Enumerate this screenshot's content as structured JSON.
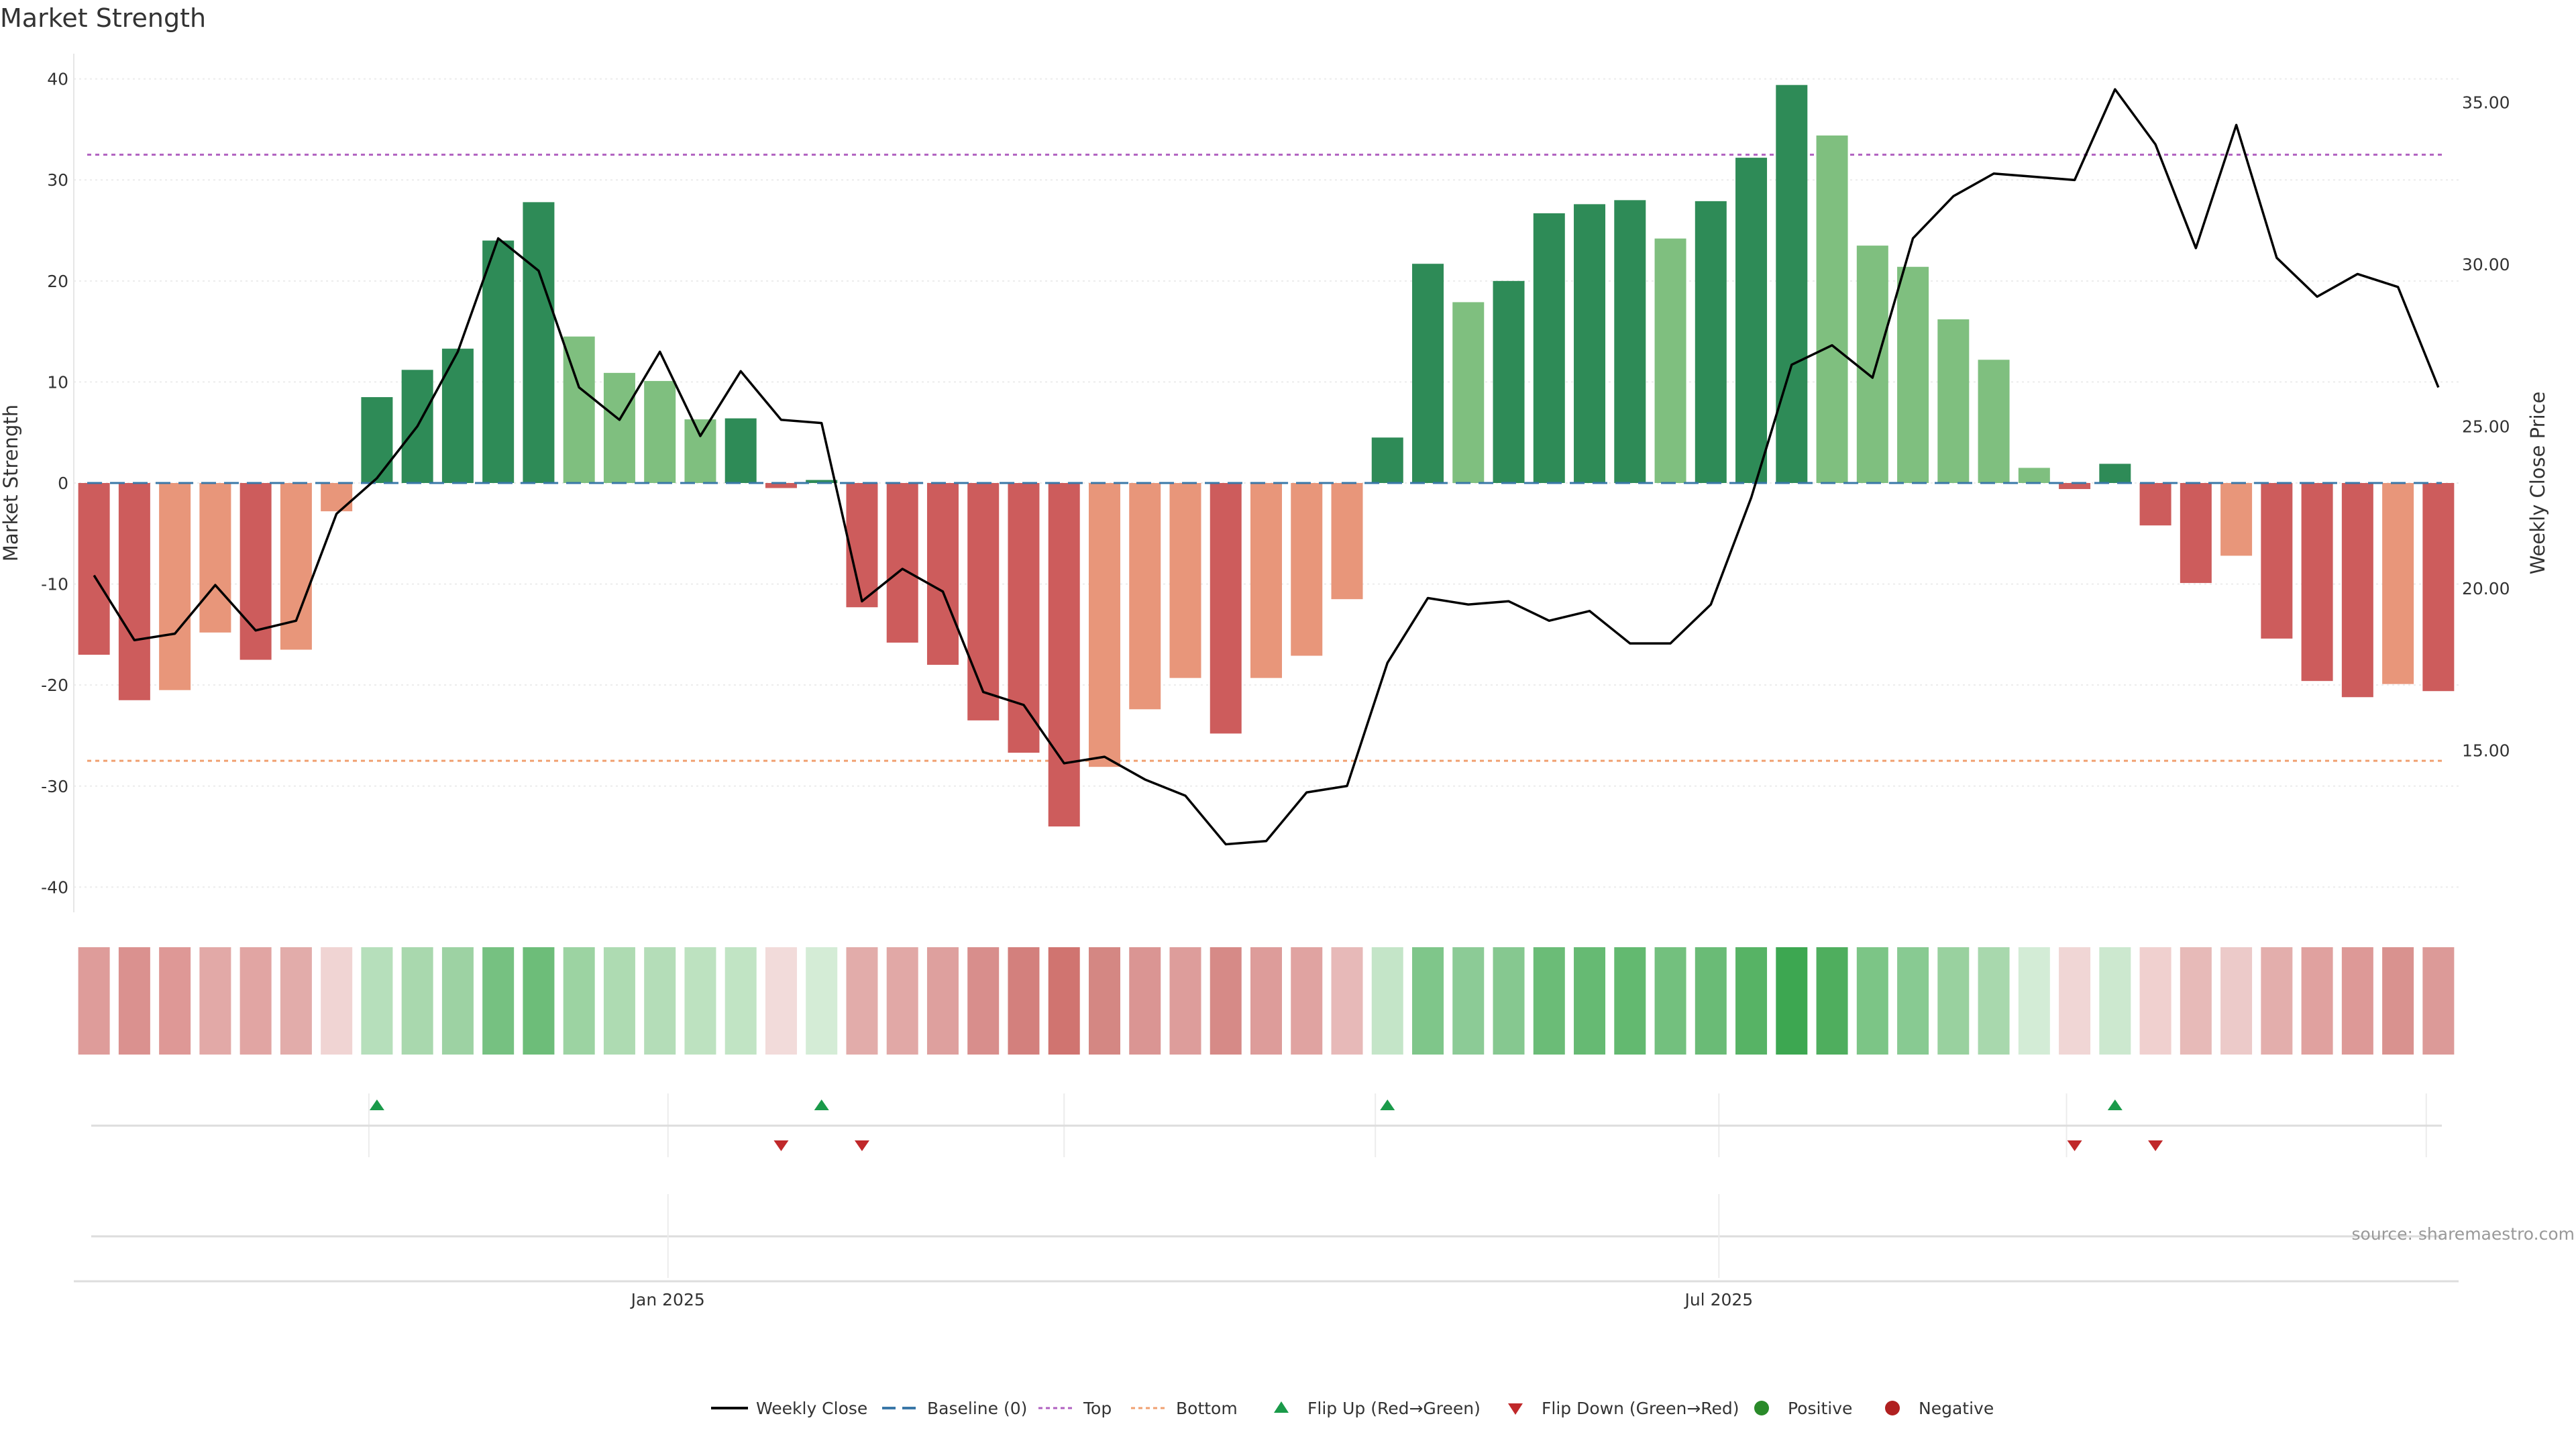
{
  "chart_data": {
    "type": "bar",
    "title": "Market Strength",
    "ylabel": "Market Strength",
    "y2label": "Weekly Close Price",
    "ylim": [
      -42.5,
      42.5
    ],
    "y2lim": [
      10.0,
      36.5
    ],
    "yticks": [
      40,
      30,
      20,
      10,
      0,
      -10,
      -20,
      -30,
      -40
    ],
    "y2ticks": [
      "35.00",
      "30.00",
      "25.00",
      "20.00",
      "15.00"
    ],
    "y2tick_values": [
      35,
      30,
      25,
      20,
      15
    ],
    "top_level": 32.5,
    "bottom_level": -27.5,
    "baseline": 0,
    "x_labels": [
      "Jan 2025",
      "Jul 2025"
    ],
    "x_label_positions": [
      14.7,
      40.7
    ],
    "flip_up_positions": [
      7.5,
      18.5,
      32.5,
      50.5
    ],
    "flip_down_positions": [
      17.5,
      19.5,
      49.5,
      51.5
    ],
    "grid": true,
    "source": "source: sharemaestro.com",
    "series": [
      {
        "name": "Market Strength",
        "values": [
          -17,
          -21.5,
          -20.5,
          -14.8,
          -17.5,
          -16.5,
          -2.8,
          8.5,
          11.2,
          13.3,
          24,
          27.8,
          14.5,
          10.9,
          10.1,
          6.3,
          6.4,
          -0.5,
          0.3,
          -12.3,
          -15.8,
          -18,
          -23.5,
          -26.7,
          -34,
          -28.1,
          -22.4,
          -19.3,
          -24.8,
          -19.3,
          -17.1,
          -11.5,
          4.5,
          21.7,
          17.9,
          20,
          26.7,
          27.6,
          28,
          24.2,
          27.9,
          32.2,
          39.4,
          34.4,
          23.5,
          21.4,
          16.2,
          12.2,
          1.5,
          -0.6,
          1.9,
          -4.2,
          -9.9,
          -7.2,
          -15.4,
          -19.6,
          -21.2,
          -19.9,
          -20.6
        ],
        "colors": [
          "#cd5c5c",
          "#cd5c5c",
          "#e8967a",
          "#e8967a",
          "#cd5c5c",
          "#e8967a",
          "#e8967a",
          "#2e8b57",
          "#2e8b57",
          "#2e8b57",
          "#2e8b57",
          "#2e8b57",
          "#7fbf7f",
          "#7fbf7f",
          "#7fbf7f",
          "#7fbf7f",
          "#2e8b57",
          "#cd5c5c",
          "#2e8b57",
          "#cd5c5c",
          "#cd5c5c",
          "#cd5c5c",
          "#cd5c5c",
          "#cd5c5c",
          "#cd5c5c",
          "#e8967a",
          "#e8967a",
          "#e8967a",
          "#cd5c5c",
          "#e8967a",
          "#e8967a",
          "#e8967a",
          "#2e8b57",
          "#2e8b57",
          "#7fbf7f",
          "#2e8b57",
          "#2e8b57",
          "#2e8b57",
          "#2e8b57",
          "#7fbf7f",
          "#2e8b57",
          "#2e8b57",
          "#2e8b57",
          "#7fbf7f",
          "#7fbf7f",
          "#7fbf7f",
          "#7fbf7f",
          "#7fbf7f",
          "#7fbf7f",
          "#cd5c5c",
          "#2e8b57",
          "#cd5c5c",
          "#cd5c5c",
          "#e8967a",
          "#cd5c5c",
          "#cd5c5c",
          "#cd5c5c",
          "#e8967a",
          "#cd5c5c"
        ]
      },
      {
        "name": "Weekly Close",
        "values": [
          20.4,
          18.4,
          18.6,
          20.1,
          18.7,
          19.0,
          22.3,
          23.4,
          25.0,
          27.3,
          30.8,
          29.8,
          26.2,
          25.2,
          27.3,
          24.7,
          26.7,
          25.2,
          25.1,
          19.6,
          20.6,
          19.9,
          16.8,
          16.4,
          14.6,
          14.8,
          14.1,
          13.6,
          12.1,
          12.2,
          13.7,
          13.9,
          17.7,
          19.7,
          19.5,
          19.6,
          19.0,
          19.3,
          18.3,
          18.3,
          19.5,
          22.8,
          26.9,
          27.5,
          26.5,
          30.8,
          32.1,
          32.8,
          32.7,
          32.6,
          35.4,
          33.7,
          30.5,
          34.3,
          30.2,
          29.0,
          29.7,
          29.3,
          26.2
        ]
      },
      {
        "name": "Heat Strip",
        "colors": [
          "#de9c9a",
          "#da918f",
          "#de9896",
          "#e2a9a7",
          "#e1a5a3",
          "#e2acaa",
          "#f0d4d3",
          "#b6dfbb",
          "#a9d8ae",
          "#9dd2a3",
          "#76c181",
          "#6dbd79",
          "#9cd3a2",
          "#aedbb2",
          "#b4ddb8",
          "#bde2c0",
          "#c1e4c4",
          "#f2dbda",
          "#d4ecd6",
          "#e2acaa",
          "#e1a8a6",
          "#dea09e",
          "#d88e8c",
          "#d3807d",
          "#d07470",
          "#d48783",
          "#da9593",
          "#dd9d9b",
          "#d68a87",
          "#dd9c9a",
          "#e0a3a1",
          "#e7b9b8",
          "#c4e5c8",
          "#7fc68a",
          "#8ccb96",
          "#86c890",
          "#6bbc77",
          "#66ba73",
          "#63b970",
          "#73c07e",
          "#6abb76",
          "#57b365",
          "#3da751",
          "#4fae5e",
          "#7cc586",
          "#88ca92",
          "#99d19f",
          "#a8d8ad",
          "#d3ecd6",
          "#f0d6d5",
          "#cce8cf",
          "#f0d0cf",
          "#e7bab8",
          "#eccac9",
          "#e3aeac",
          "#e0a19f",
          "#dd9997",
          "#d9928f",
          "#dc9a98"
        ]
      }
    ],
    "legend": [
      "Weekly Close",
      "Baseline (0)",
      "Top",
      "Bottom",
      "Flip Up (Red→Green)",
      "Flip Down (Green→Red)",
      "Positive",
      "Negative"
    ],
    "legend_colors": [
      "#000000",
      "#3a78a8",
      "#b060c0",
      "#f0a070",
      "#1a9a4a",
      "#c0282a",
      "#2a8a2a",
      "#b02020"
    ]
  }
}
